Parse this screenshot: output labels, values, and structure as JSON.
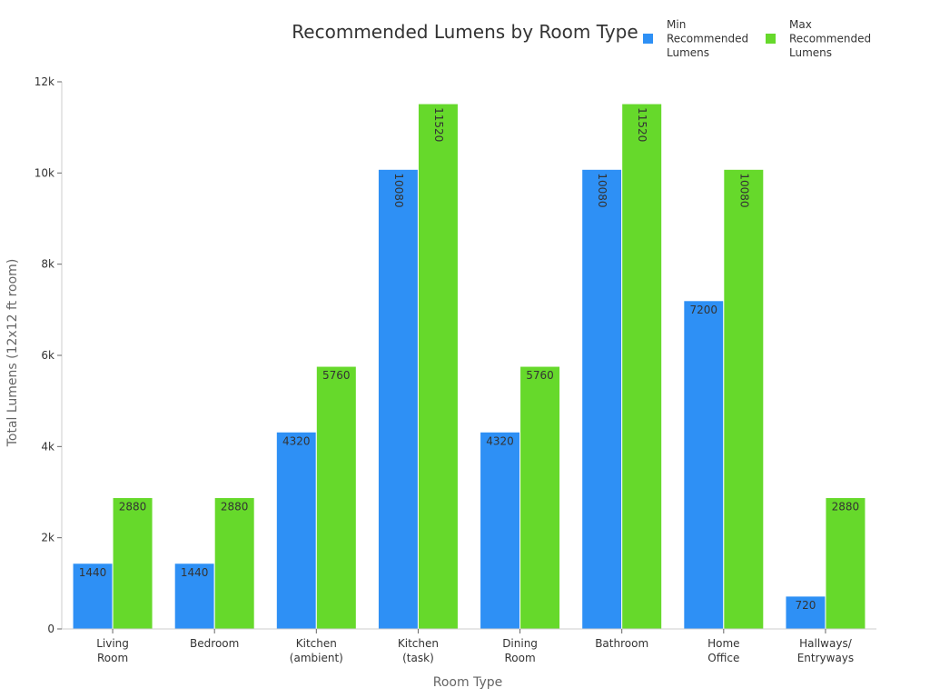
{
  "chart_data": {
    "type": "bar",
    "title": "Recommended Lumens by Room Type",
    "xlabel": "Room Type",
    "ylabel": "Total Lumens (12x12 ft room)",
    "categories": [
      [
        "Living",
        "Room"
      ],
      [
        "Bedroom"
      ],
      [
        "Kitchen",
        "(ambient)"
      ],
      [
        "Kitchen",
        "(task)"
      ],
      [
        "Dining",
        "Room"
      ],
      [
        "Bathroom"
      ],
      [
        "Home",
        "Office"
      ],
      [
        "Hallways/",
        "Entryways"
      ]
    ],
    "series": [
      {
        "name": "Min Recommended Lumens",
        "legend_lines": [
          "Min",
          "Recommended",
          "Lumens"
        ],
        "color": "#2e90f5",
        "values": [
          1440,
          1440,
          4320,
          10080,
          4320,
          10080,
          7200,
          720
        ]
      },
      {
        "name": "Max Recommended Lumens",
        "legend_lines": [
          "Max",
          "Recommended",
          "Lumens"
        ],
        "color": "#66d92b",
        "values": [
          2880,
          2880,
          5760,
          11520,
          5760,
          11520,
          10080,
          2880
        ]
      }
    ],
    "ylim": [
      0,
      12000
    ],
    "yticks": [
      0,
      2000,
      4000,
      6000,
      8000,
      10000,
      12000
    ],
    "ytick_labels": [
      "0",
      "2k",
      "4k",
      "6k",
      "8k",
      "10k",
      "12k"
    ],
    "grid": false,
    "legend": "top-right"
  }
}
